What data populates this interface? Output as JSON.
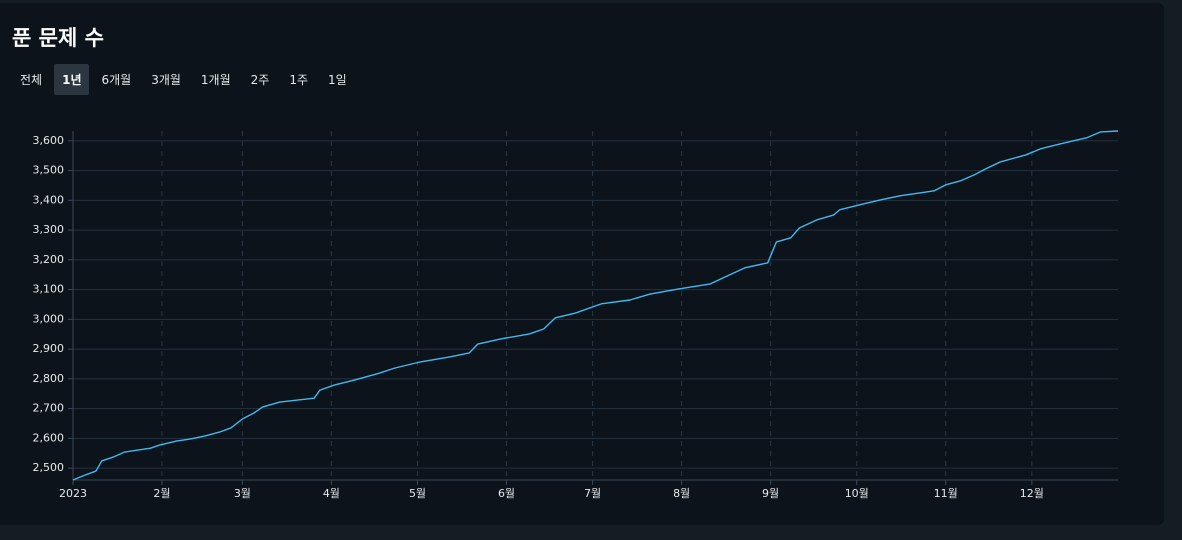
{
  "title": "푼 문제 수",
  "tabs": [
    "전체",
    "1년",
    "6개월",
    "3개월",
    "1개월",
    "2주",
    "1주",
    "1일"
  ],
  "selected_tab": 1,
  "chart_data": {
    "type": "line",
    "x": [
      0,
      4,
      8,
      10,
      14,
      18,
      27,
      30,
      36,
      41,
      46,
      51,
      55,
      59,
      63,
      66,
      72,
      84,
      86,
      91,
      98,
      107,
      112,
      121,
      131,
      138,
      141,
      149,
      159,
      164,
      168,
      175,
      184,
      194,
      201,
      211,
      222,
      227,
      234,
      242,
      245,
      250,
      253,
      259,
      265,
      267,
      274,
      281,
      288,
      300,
      304,
      309,
      314,
      318,
      323,
      332,
      337,
      344,
      353,
      358,
      364
    ],
    "series": [
      {
        "color": "#3fb9f2",
        "values": [
          2460,
          2476,
          2490,
          2524,
          2537,
          2554,
          2567,
          2577,
          2591,
          2598,
          2608,
          2621,
          2635,
          2665,
          2685,
          2705,
          2722,
          2735,
          2762,
          2779,
          2796,
          2820,
          2836,
          2857,
          2873,
          2887,
          2917,
          2934,
          2951,
          2968,
          3005,
          3021,
          3052,
          3065,
          3085,
          3102,
          3119,
          3142,
          3173,
          3190,
          3260,
          3274,
          3307,
          3334,
          3351,
          3368,
          3385,
          3401,
          3415,
          3432,
          3452,
          3465,
          3486,
          3506,
          3529,
          3553,
          3573,
          3590,
          3610,
          3630,
          3633
        ]
      }
    ],
    "xlim": [
      0,
      364
    ],
    "xticks": [
      {
        "value": 0,
        "label": "2023"
      },
      {
        "value": 31,
        "label": "2월"
      },
      {
        "value": 59,
        "label": "3월"
      },
      {
        "value": 90,
        "label": "4월"
      },
      {
        "value": 120,
        "label": "5월"
      },
      {
        "value": 151,
        "label": "6월"
      },
      {
        "value": 181,
        "label": "7월"
      },
      {
        "value": 212,
        "label": "8월"
      },
      {
        "value": 243,
        "label": "9월"
      },
      {
        "value": 273,
        "label": "10월"
      },
      {
        "value": 304,
        "label": "11월"
      },
      {
        "value": 334,
        "label": "12월"
      }
    ],
    "ylim": [
      2460,
      3633
    ],
    "yticks": [
      {
        "value": 2500,
        "label": "2,500"
      },
      {
        "value": 2600,
        "label": "2,600"
      },
      {
        "value": 2700,
        "label": "2,700"
      },
      {
        "value": 2800,
        "label": "2,800"
      },
      {
        "value": 2900,
        "label": "2,900"
      },
      {
        "value": 3000,
        "label": "3,000"
      },
      {
        "value": 3100,
        "label": "3,100"
      },
      {
        "value": 3200,
        "label": "3,200"
      },
      {
        "value": 3300,
        "label": "3,300"
      },
      {
        "value": 3400,
        "label": "3,400"
      },
      {
        "value": 3500,
        "label": "3,500"
      },
      {
        "value": 3600,
        "label": "3,600"
      }
    ],
    "grid": true
  }
}
